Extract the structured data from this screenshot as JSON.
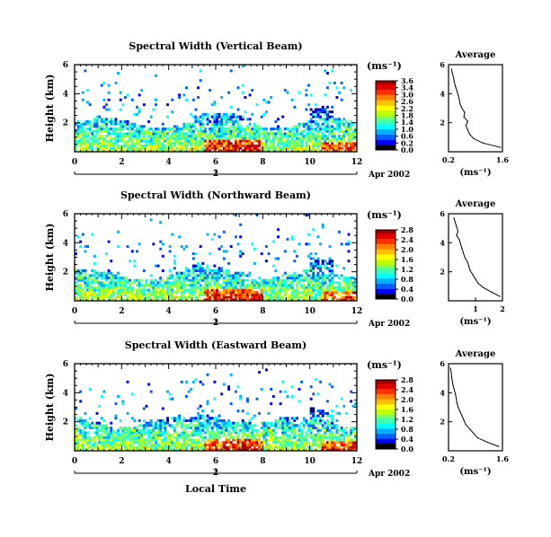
{
  "figure": {
    "date_label": "Apr 2002",
    "day_label": "2",
    "xaxis_title": "Local Time",
    "colorbar_unit": "(ms⁻¹)",
    "avg_title": "Average",
    "avg_xlabel": "(ms⁻¹)"
  },
  "colors": {
    "colormap": [
      "#00007a",
      "#0000ff",
      "#0060ff",
      "#00b0ff",
      "#00ffff",
      "#40ffb0",
      "#80ff60",
      "#c0ff00",
      "#ffff00",
      "#ffc000",
      "#ff8000",
      "#ff3000",
      "#e00000",
      "#a00000"
    ],
    "zero_color": "#ffffff"
  },
  "chart_data": [
    {
      "type": "heatmap",
      "title": "Spectral Width (Vertical Beam)",
      "ylabel": "Height (km)",
      "xlim": [
        0,
        12
      ],
      "ylim": [
        0,
        6
      ],
      "xticks": [
        0,
        2,
        4,
        6,
        8,
        10,
        12
      ],
      "yticks": [
        2,
        4,
        6
      ],
      "colorbar": {
        "min": 0.0,
        "max": 3.6,
        "ticks": [
          "3.6",
          "3.4",
          "3.0",
          "2.6",
          "2.2",
          "1.8",
          "1.4",
          "1.0",
          "0.6",
          "0.2",
          "0.0"
        ]
      },
      "cloud_top_km": 2.0,
      "average_profile": {
        "title": "Average",
        "xlabel": "(ms⁻¹)",
        "xlim": [
          0.2,
          1.6
        ],
        "xticks": [
          0.2,
          1.6
        ],
        "ylim": [
          0,
          6
        ],
        "yticks": [
          2,
          4,
          6
        ],
        "height": [
          0.3,
          0.6,
          0.9,
          1.2,
          1.5,
          1.8,
          2.1,
          2.4,
          2.7,
          3.0,
          3.3,
          3.6,
          3.9,
          4.2,
          4.5,
          4.8,
          5.1,
          5.4,
          5.7
        ],
        "width": [
          1.55,
          1.1,
          0.85,
          0.75,
          0.7,
          0.65,
          0.7,
          0.6,
          0.62,
          0.55,
          0.5,
          0.48,
          0.45,
          0.42,
          0.38,
          0.35,
          0.33,
          0.3,
          0.28
        ]
      }
    },
    {
      "type": "heatmap",
      "title": "Spectral Width (Northward Beam)",
      "ylabel": "Height (km)",
      "xlim": [
        0,
        12
      ],
      "ylim": [
        0,
        6
      ],
      "xticks": [
        0,
        2,
        4,
        6,
        8,
        10,
        12
      ],
      "yticks": [
        2,
        4,
        6
      ],
      "colorbar": {
        "min": 0.0,
        "max": 2.8,
        "ticks": [
          "2.8",
          "2.4",
          "2.0",
          "1.6",
          "1.2",
          "0.8",
          "0.4",
          "0.0"
        ]
      },
      "cloud_top_km": 1.8,
      "average_profile": {
        "title": "Average",
        "xlabel": "(ms⁻¹)",
        "xlim": [
          0,
          2
        ],
        "xticks": [
          1,
          2
        ],
        "ylim": [
          0,
          6
        ],
        "yticks": [
          2,
          4,
          6
        ],
        "height": [
          0.3,
          0.6,
          0.9,
          1.2,
          1.5,
          1.8,
          2.1,
          2.4,
          2.7,
          3.0,
          3.3,
          3.6,
          3.9,
          4.2,
          4.5,
          4.8,
          5.1,
          5.4,
          5.7
        ],
        "width": [
          1.9,
          1.6,
          1.3,
          1.1,
          1.0,
          0.9,
          0.8,
          0.75,
          0.7,
          0.6,
          0.55,
          0.5,
          0.45,
          0.4,
          0.3,
          0.35,
          0.3,
          0.25,
          0.2
        ]
      }
    },
    {
      "type": "heatmap",
      "title": "Spectral Width (Eastward Beam)",
      "ylabel": "Height (km)",
      "xlim": [
        0,
        12
      ],
      "ylim": [
        0,
        6
      ],
      "xticks": [
        0,
        2,
        4,
        6,
        8,
        10,
        12
      ],
      "yticks": [
        2,
        4,
        6
      ],
      "colorbar": {
        "min": 0.0,
        "max": 2.8,
        "ticks": [
          "2.8",
          "2.4",
          "2.0",
          "1.6",
          "1.2",
          "0.8",
          "0.4",
          "0.0"
        ]
      },
      "cloud_top_km": 2.0,
      "average_profile": {
        "title": "Average",
        "xlabel": "(ms⁻¹)",
        "xlim": [
          0.2,
          1.6
        ],
        "xticks": [
          0.2,
          1.6
        ],
        "ylim": [
          0,
          6
        ],
        "yticks": [
          2,
          4,
          6
        ],
        "height": [
          0.3,
          0.6,
          0.9,
          1.2,
          1.5,
          1.8,
          2.1,
          2.4,
          2.7,
          3.0,
          3.3,
          3.6,
          3.9,
          4.2,
          4.5,
          4.8,
          5.1,
          5.4,
          5.7
        ],
        "width": [
          1.5,
          1.2,
          0.95,
          0.85,
          0.75,
          0.65,
          0.6,
          0.55,
          0.5,
          0.45,
          0.42,
          0.4,
          0.38,
          0.35,
          0.32,
          0.3,
          0.28,
          0.27,
          0.25
        ]
      }
    }
  ]
}
